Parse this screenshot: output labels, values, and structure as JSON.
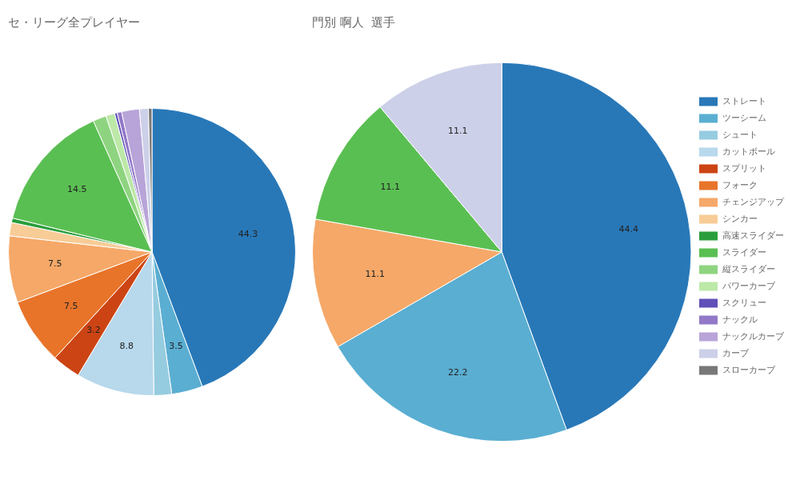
{
  "chart_data": [
    {
      "type": "pie",
      "title": "セ・リーグ全プレイヤー",
      "categories": [
        "ストレート",
        "ツーシーム",
        "シュート",
        "カットボール",
        "スプリット",
        "フォーク",
        "チェンジアップ",
        "シンカー",
        "高速スライダー",
        "スライダー",
        "縦スライダー",
        "パワーカーブ",
        "スクリュー",
        "ナックル",
        "ナックルカーブ",
        "カーブ",
        "スローカーブ"
      ],
      "values": [
        44.3,
        3.5,
        2.0,
        8.8,
        3.2,
        7.5,
        7.5,
        1.5,
        0.5,
        14.5,
        1.5,
        1.0,
        0.3,
        0.5,
        2.0,
        1.0,
        0.4
      ],
      "colors": [
        "#2878b8",
        "#5aaed2",
        "#96cce0",
        "#b8d8ec",
        "#cc4414",
        "#e8742a",
        "#f5a868",
        "#f8cc96",
        "#2a9e3c",
        "#5abf52",
        "#8ed480",
        "#bce8a8",
        "#6050b8",
        "#9278c8",
        "#b8a4d8",
        "#ccd0e8",
        "#787878"
      ],
      "data_labels": true,
      "value_labels": [
        "44.3",
        "3.5",
        null,
        "8.8",
        "3.2",
        "7.5",
        "7.5",
        null,
        null,
        "14.5",
        null,
        null,
        null,
        null,
        null,
        null,
        null
      ]
    },
    {
      "type": "pie",
      "title": "門別 啊人  選手",
      "categories": [
        "ストレート",
        "ツーシーム",
        "シュート",
        "カットボール",
        "スプリット",
        "フォーク",
        "チェンジアップ",
        "シンカー",
        "高速スライダー",
        "スライダー",
        "縦スライダー",
        "パワーカーブ",
        "スクリュー",
        "ナックル",
        "ナックルカーブ",
        "カーブ",
        "スローカーブ"
      ],
      "values": [
        44.4,
        22.2,
        0,
        0,
        0,
        0,
        11.1,
        0,
        0,
        11.1,
        0,
        0,
        0,
        0,
        0,
        11.1,
        0
      ],
      "colors": [
        "#2878b8",
        "#5aaed2",
        "#96cce0",
        "#b8d8ec",
        "#cc4414",
        "#e8742a",
        "#f5a868",
        "#f8cc96",
        "#2a9e3c",
        "#5abf52",
        "#8ed480",
        "#bce8a8",
        "#6050b8",
        "#9278c8",
        "#b8a4d8",
        "#ccd0e8",
        "#787878"
      ],
      "data_labels": true,
      "value_labels": [
        "44.4",
        "22.2",
        null,
        null,
        null,
        null,
        "11.1",
        null,
        null,
        "11.1",
        null,
        null,
        null,
        null,
        null,
        "11.1",
        null
      ],
      "legend": "right"
    }
  ]
}
